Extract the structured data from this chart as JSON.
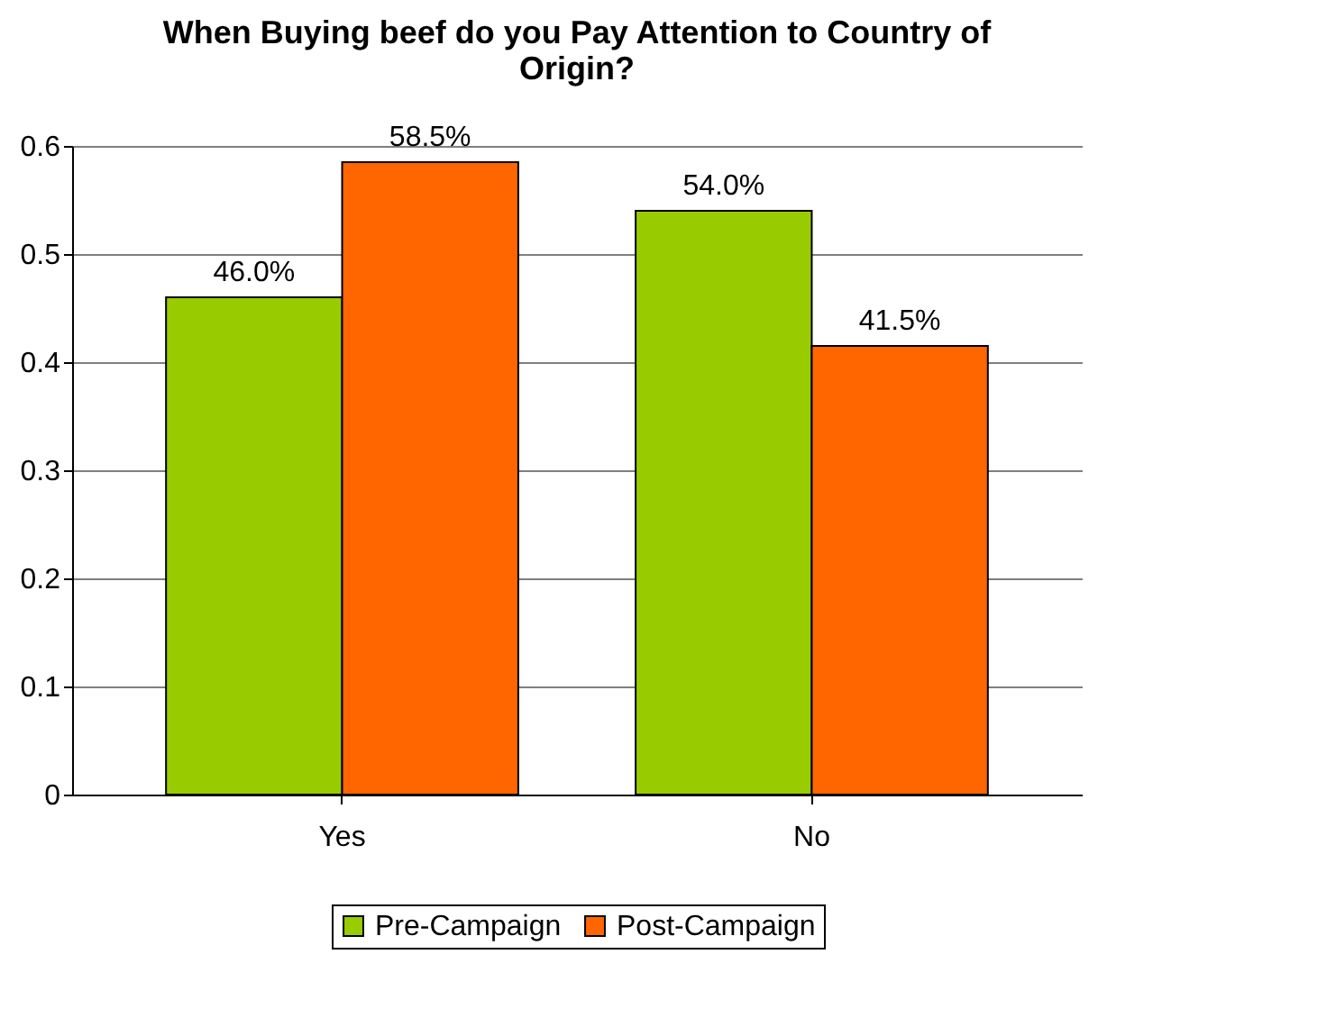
{
  "chart_data": {
    "type": "bar",
    "title": "When Buying beef do you Pay Attention to Country of Origin?",
    "categories": [
      "Yes",
      "No"
    ],
    "series": [
      {
        "name": "Pre-Campaign",
        "color": "#99cc00",
        "values": [
          0.46,
          0.54
        ],
        "value_labels": [
          "46.0%",
          "54.0%"
        ]
      },
      {
        "name": "Post-Campaign",
        "color": "#ff6600",
        "values": [
          0.585,
          0.415
        ],
        "value_labels": [
          "58.5%",
          "41.5%"
        ]
      }
    ],
    "ylim": [
      0,
      0.6
    ],
    "yticks": [
      0,
      0.1,
      0.2,
      0.3,
      0.4,
      0.5,
      0.6
    ],
    "grid": "y",
    "legend": "bottom"
  }
}
